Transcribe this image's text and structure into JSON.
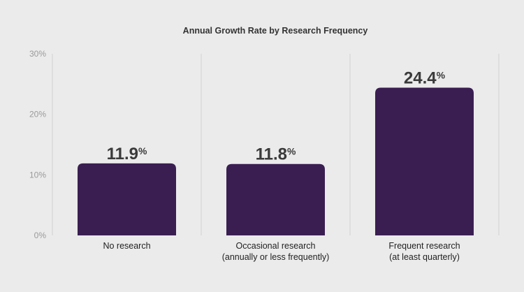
{
  "chart_data": {
    "type": "bar",
    "title": "Annual Growth Rate by Research Frequency",
    "xlabel": "",
    "ylabel": "",
    "categories": [
      [
        "No research"
      ],
      [
        "Occasional research",
        "(annually or less frequently)"
      ],
      [
        "Frequent research",
        "(at least quarterly)"
      ]
    ],
    "values": [
      11.9,
      11.8,
      24.4
    ],
    "value_labels": [
      "11.9",
      "11.8",
      "24.4"
    ],
    "value_suffix": "%",
    "ylim": [
      0,
      30
    ],
    "yticks": [
      0,
      10,
      20,
      30
    ],
    "ytick_labels": [
      "0%",
      "10%",
      "20%",
      "30%"
    ],
    "bar_color": "#3a1e52",
    "grid": "vertical separators",
    "legend": "none"
  }
}
